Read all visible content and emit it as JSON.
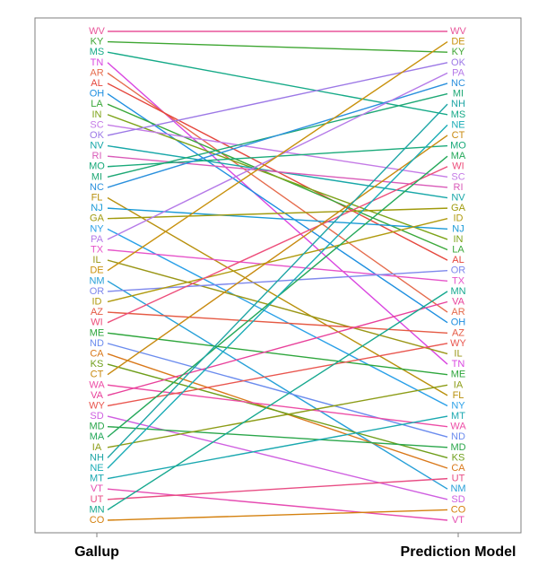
{
  "chart_data": {
    "type": "slope",
    "columns": [
      "Gallup",
      "Prediction Model"
    ],
    "grid": false,
    "legend": "none",
    "left_order": [
      "WV",
      "KY",
      "MS",
      "TN",
      "AR",
      "AL",
      "OH",
      "LA",
      "IN",
      "SC",
      "OK",
      "NV",
      "RI",
      "MO",
      "MI",
      "NC",
      "FL",
      "NJ",
      "GA",
      "NY",
      "PA",
      "TX",
      "IL",
      "DE",
      "NM",
      "OR",
      "ID",
      "AZ",
      "WI",
      "ME",
      "ND",
      "CA",
      "KS",
      "CT",
      "WA",
      "VA",
      "WY",
      "SD",
      "MD",
      "MA",
      "IA",
      "NH",
      "NE",
      "MT",
      "VT",
      "UT",
      "MN",
      "CO"
    ],
    "right_order": [
      "WV",
      "DE",
      "KY",
      "OK",
      "PA",
      "NC",
      "MI",
      "NH",
      "MS",
      "NE",
      "CT",
      "MO",
      "MA",
      "WI",
      "SC",
      "RI",
      "NV",
      "GA",
      "ID",
      "NJ",
      "IN",
      "LA",
      "AL",
      "OR",
      "TX",
      "MN",
      "VA",
      "AR",
      "OH",
      "AZ",
      "WY",
      "IL",
      "TN",
      "ME",
      "IA",
      "FL",
      "NY",
      "MT",
      "WA",
      "ND",
      "MD",
      "KS",
      "CA",
      "UT",
      "NM",
      "SD",
      "CO",
      "VT"
    ],
    "colors": {
      "WV": "#e8559a",
      "KY": "#3ea632",
      "MS": "#16aa88",
      "TN": "#d946e0",
      "AR": "#e56b4c",
      "AL": "#e5463c",
      "OH": "#1e8fe0",
      "LA": "#3aa83a",
      "IN": "#7da318",
      "SC": "#c47ae6",
      "OK": "#9c78e6",
      "NV": "#17a7a8",
      "RI": "#d95ab8",
      "MO": "#1aaa7a",
      "MI": "#1ea875",
      "NC": "#2a90dd",
      "FL": "#b8900c",
      "NJ": "#1a9ad6",
      "GA": "#a09a0c",
      "NY": "#2aa0e8",
      "PA": "#b57ae8",
      "TX": "#e653c9",
      "IL": "#9a9616",
      "DE": "#c8910c",
      "NM": "#27a0d8",
      "OR": "#7e88ec",
      "ID": "#b09a0e",
      "AZ": "#e55a44",
      "WI": "#ed4d7a",
      "ME": "#2ea63c",
      "ND": "#6b8cee",
      "CA": "#d9781a",
      "KS": "#6e9e1a",
      "CT": "#c88a10",
      "WA": "#ed4da6",
      "VA": "#e8409a",
      "WY": "#e9554e",
      "SD": "#cf5ee0",
      "MD": "#2aa64a",
      "MA": "#24a85a",
      "IA": "#8c9c16",
      "NH": "#1ea5a5",
      "NE": "#1aacb6",
      "MT": "#1aa8b0",
      "VT": "#e64cb2",
      "UT": "#e84d84",
      "MN": "#16a88f",
      "CO": "#d4800e"
    }
  }
}
